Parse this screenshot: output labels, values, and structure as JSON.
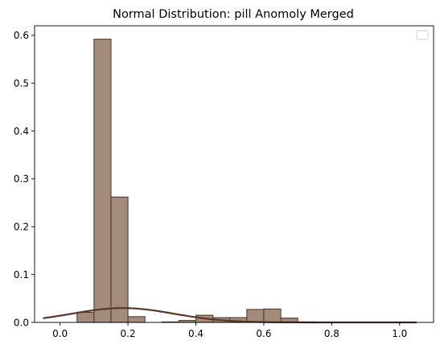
{
  "chart_data": {
    "type": "bar",
    "title": "Normal Distribution: pill Anomoly Merged",
    "xlabel": "",
    "ylabel": "",
    "xlim": [
      -0.075,
      1.1
    ],
    "ylim": [
      0,
      0.62
    ],
    "xticks": [
      0.0,
      0.2,
      0.4,
      0.6,
      0.8,
      1.0
    ],
    "xtick_labels": [
      "0.0",
      "0.2",
      "0.4",
      "0.6",
      "0.8",
      "1.0"
    ],
    "yticks": [
      0.0,
      0.1,
      0.2,
      0.3,
      0.4,
      0.5,
      0.6
    ],
    "ytick_labels": [
      "0.0",
      "0.1",
      "0.2",
      "0.3",
      "0.4",
      "0.5",
      "0.6"
    ],
    "grid": false,
    "legend": "top-right, empty",
    "bar_color": "#a48a7b",
    "bar_edge_color": "#4d3f38",
    "curve_color": "#5a3825",
    "bins": [
      {
        "x0": 0.05,
        "x1": 0.1,
        "value": 0.021
      },
      {
        "x0": 0.1,
        "x1": 0.15,
        "value": 0.592
      },
      {
        "x0": 0.15,
        "x1": 0.2,
        "value": 0.262
      },
      {
        "x0": 0.2,
        "x1": 0.25,
        "value": 0.012
      },
      {
        "x0": 0.25,
        "x1": 0.3,
        "value": 0.0
      },
      {
        "x0": 0.3,
        "x1": 0.35,
        "value": 0.001
      },
      {
        "x0": 0.35,
        "x1": 0.4,
        "value": 0.004
      },
      {
        "x0": 0.4,
        "x1": 0.45,
        "value": 0.015
      },
      {
        "x0": 0.45,
        "x1": 0.5,
        "value": 0.01
      },
      {
        "x0": 0.5,
        "x1": 0.55,
        "value": 0.01
      },
      {
        "x0": 0.55,
        "x1": 0.6,
        "value": 0.027
      },
      {
        "x0": 0.6,
        "x1": 0.65,
        "value": 0.028
      },
      {
        "x0": 0.65,
        "x1": 0.7,
        "value": 0.009
      },
      {
        "x0": 0.7,
        "x1": 0.75,
        "value": 0.001
      }
    ],
    "normal_fit": {
      "mean": 0.185,
      "std": 0.15,
      "peak": 0.03,
      "x_range": [
        -0.05,
        1.05
      ]
    }
  }
}
